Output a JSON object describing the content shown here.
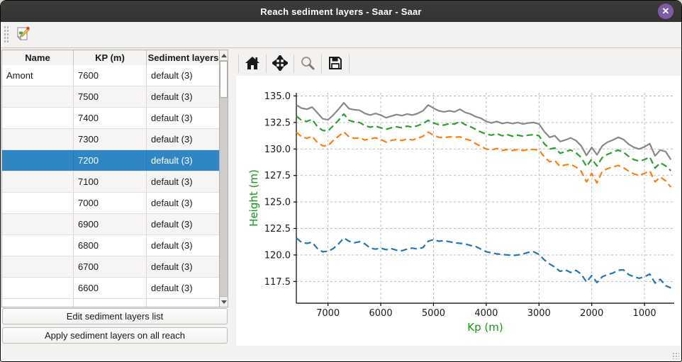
{
  "window": {
    "title": "Reach sediment layers - Saar - Saar",
    "close_glyph": "✕"
  },
  "toolbar": {
    "edit_button": "edit-sediment-form"
  },
  "table": {
    "headers": [
      "Name",
      "KP (m)",
      "Sediment layers"
    ],
    "rows": [
      {
        "name": "Amont",
        "kp": "7600",
        "layers": "default (3)",
        "selected": false
      },
      {
        "name": "",
        "kp": "7500",
        "layers": "default (3)",
        "selected": false
      },
      {
        "name": "",
        "kp": "7400",
        "layers": "default (3)",
        "selected": false
      },
      {
        "name": "",
        "kp": "7300",
        "layers": "default (3)",
        "selected": false
      },
      {
        "name": "",
        "kp": "7200",
        "layers": "default (3)",
        "selected": true
      },
      {
        "name": "",
        "kp": "7100",
        "layers": "default (3)",
        "selected": false
      },
      {
        "name": "",
        "kp": "7000",
        "layers": "default (3)",
        "selected": false
      },
      {
        "name": "",
        "kp": "6900",
        "layers": "default (3)",
        "selected": false
      },
      {
        "name": "",
        "kp": "6800",
        "layers": "default (3)",
        "selected": false
      },
      {
        "name": "",
        "kp": "6700",
        "layers": "default (3)",
        "selected": false
      },
      {
        "name": "",
        "kp": "6600",
        "layers": "default (3)",
        "selected": false
      }
    ]
  },
  "buttons": {
    "edit": "Edit sediment layers list",
    "apply": "Apply sediment layers on all reach"
  },
  "plot_toolbar": {
    "icons": [
      "home-icon",
      "pan-icon",
      "zoom-icon",
      "save-icon"
    ]
  },
  "colors": {
    "selection": "#3086c3",
    "axis_label_green": "#129612",
    "titlebar": "#383634",
    "close_button": "#7d5ba6"
  },
  "chart_data": {
    "type": "line",
    "title": "",
    "xlabel": "Kp (m)",
    "ylabel": "Height (m)",
    "x_reversed": true,
    "grid": true,
    "legend": "none",
    "xlim": [
      7600,
      437
    ],
    "ylim": [
      115.45,
      135.3
    ],
    "x_ticks": [
      7000,
      6000,
      5000,
      4000,
      3000,
      2000,
      1000
    ],
    "x_tick_labels": [
      "7000",
      "6000",
      "5000",
      "4000",
      "3000",
      "2000",
      "1000"
    ],
    "y_ticks": [
      117.5,
      120.0,
      122.5,
      125.0,
      127.5,
      130.0,
      132.5,
      135.0
    ],
    "y_tick_labels": [
      "117.5",
      "120.0",
      "122.5",
      "125.0",
      "127.5",
      "130.0",
      "132.5",
      "135.0"
    ],
    "x": [
      7600,
      7500,
      7400,
      7300,
      7200,
      7100,
      7000,
      6900,
      6800,
      6700,
      6600,
      6500,
      6400,
      6300,
      6200,
      6100,
      6000,
      5900,
      5800,
      5700,
      5600,
      5500,
      5400,
      5300,
      5200,
      5100,
      5000,
      4900,
      4800,
      4700,
      4600,
      4500,
      4400,
      4300,
      4200,
      4100,
      4000,
      3900,
      3800,
      3700,
      3600,
      3500,
      3400,
      3300,
      3200,
      3100,
      3000,
      2900,
      2800,
      2700,
      2600,
      2500,
      2400,
      2300,
      2200,
      2100,
      2000,
      1900,
      1800,
      1700,
      1600,
      1500,
      1400,
      1300,
      1200,
      1100,
      1000,
      900,
      800,
      700,
      600,
      500
    ],
    "series": [
      {
        "name": "gray solid line",
        "color": "#888888",
        "dashed": false,
        "linewidth": 2.2,
        "values": [
          134.15,
          133.85,
          133.75,
          133.95,
          133.4,
          132.85,
          132.75,
          133.2,
          133.75,
          134.35,
          133.8,
          133.7,
          133.65,
          133.35,
          133.2,
          133.35,
          133.2,
          132.95,
          133.1,
          133.25,
          133.15,
          133.3,
          133.2,
          133.35,
          133.6,
          134.15,
          133.85,
          133.6,
          133.5,
          133.6,
          133.5,
          133.75,
          133.45,
          133.3,
          133.05,
          132.9,
          132.6,
          132.45,
          132.6,
          132.4,
          132.5,
          132.4,
          132.5,
          132.35,
          132.45,
          132.5,
          132.35,
          131.65,
          131.1,
          131.25,
          130.7,
          130.85,
          131.05,
          130.8,
          130.3,
          129.4,
          130.15,
          129.45,
          130.3,
          130.65,
          130.85,
          131.1,
          130.9,
          130.45,
          130.15,
          130.0,
          130.2,
          130.5,
          129.35,
          129.9,
          129.75,
          129.0
        ]
      },
      {
        "name": "green dashed line",
        "color": "#2ca02c",
        "dashed": true,
        "linewidth": 2.2,
        "values": [
          133.1,
          132.7,
          132.6,
          132.8,
          132.1,
          131.75,
          131.7,
          132.2,
          132.7,
          133.3,
          132.7,
          132.55,
          132.5,
          132.2,
          132.05,
          132.15,
          132.0,
          131.85,
          132.0,
          132.1,
          132.0,
          132.15,
          132.05,
          132.2,
          132.4,
          132.7,
          132.45,
          132.3,
          132.25,
          132.4,
          132.35,
          132.6,
          132.3,
          132.1,
          131.85,
          131.6,
          131.4,
          131.3,
          131.45,
          131.25,
          131.35,
          131.2,
          131.3,
          131.2,
          131.3,
          131.35,
          131.25,
          130.5,
          130.0,
          130.1,
          129.6,
          129.75,
          129.9,
          129.65,
          129.2,
          128.35,
          129.05,
          128.4,
          129.2,
          129.5,
          129.7,
          129.9,
          129.7,
          129.3,
          129.0,
          128.85,
          129.0,
          129.25,
          128.2,
          128.7,
          128.4,
          127.95
        ]
      },
      {
        "name": "orange dashed line",
        "color": "#ff7f0e",
        "dashed": true,
        "linewidth": 2.2,
        "values": [
          131.6,
          131.15,
          131.0,
          131.2,
          130.6,
          130.3,
          130.3,
          130.8,
          131.2,
          131.6,
          131.15,
          131.0,
          131.05,
          130.85,
          130.95,
          131.05,
          130.9,
          130.65,
          130.8,
          130.9,
          130.8,
          130.95,
          130.85,
          131.0,
          131.2,
          131.6,
          131.3,
          131.1,
          131.05,
          131.15,
          131.1,
          131.15,
          130.95,
          130.8,
          130.5,
          130.25,
          130.0,
          129.9,
          130.05,
          129.85,
          129.95,
          129.85,
          129.95,
          129.85,
          129.95,
          129.95,
          129.9,
          129.25,
          128.8,
          128.9,
          128.35,
          128.5,
          128.55,
          128.3,
          127.9,
          126.9,
          127.7,
          126.8,
          127.9,
          128.15,
          128.3,
          128.45,
          128.25,
          127.9,
          127.65,
          127.5,
          127.7,
          127.95,
          126.9,
          127.35,
          127.0,
          126.4
        ]
      },
      {
        "name": "blue dashed line",
        "color": "#1f77b4",
        "dashed": true,
        "linewidth": 2.2,
        "values": [
          121.6,
          121.2,
          121.1,
          121.2,
          120.6,
          120.3,
          120.35,
          120.6,
          121.05,
          121.6,
          121.3,
          121.15,
          121.25,
          121.05,
          120.65,
          120.55,
          120.65,
          120.5,
          120.6,
          120.45,
          120.4,
          120.55,
          120.65,
          120.55,
          120.7,
          121.3,
          121.45,
          121.3,
          121.35,
          121.25,
          121.15,
          121.1,
          121.05,
          120.9,
          120.8,
          120.55,
          120.3,
          120.2,
          120.1,
          120.05,
          120.0,
          119.95,
          120.0,
          120.1,
          120.25,
          120.3,
          120.05,
          119.55,
          119.15,
          118.85,
          118.45,
          118.6,
          118.35,
          118.55,
          118.2,
          117.45,
          118.05,
          117.4,
          117.95,
          118.15,
          118.3,
          118.55,
          118.6,
          118.15,
          117.95,
          117.8,
          117.95,
          118.2,
          117.35,
          117.7,
          117.1,
          116.9
        ]
      }
    ]
  }
}
